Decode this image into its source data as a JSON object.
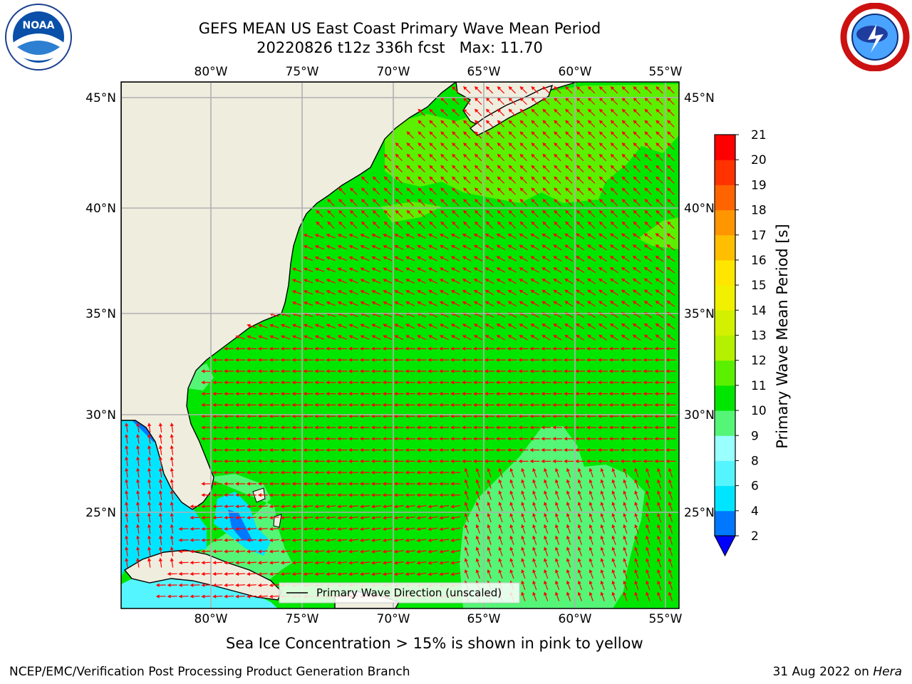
{
  "header": {
    "title_line1": "GEFS MEAN US East Coast Primary Wave Mean Period",
    "title_line2": "20220826 t12z 336h fcst   Max: 11.70"
  },
  "logos": {
    "left": {
      "icon": "noaa-logo",
      "text": "NOAA"
    },
    "right": {
      "icon": "national-weather-service-logo"
    }
  },
  "map": {
    "lon_ticks": [
      "80°W",
      "75°W",
      "70°W",
      "65°W",
      "60°W",
      "55°W"
    ],
    "lat_ticks": [
      "45°N",
      "40°N",
      "35°N",
      "30°N",
      "25°N"
    ],
    "legend_label": "Primary Wave Direction (unscaled)",
    "colors": {
      "land": "#efedde",
      "period_10_11": "#00e600",
      "period_11_12": "#5af000",
      "period_9_10": "#55f577",
      "period_8_9": "#99ffff",
      "period_6_8": "#55f5ff",
      "period_4_6": "#00e5ff",
      "period_2_4": "#0077ff",
      "arrow": "#ff0000",
      "grid": "#b0b0b0"
    }
  },
  "colorbar": {
    "label": "Primary Wave Mean Period [s]",
    "ticks": [
      "2",
      "4",
      "6",
      "8",
      "9",
      "10",
      "11",
      "12",
      "13",
      "14",
      "15",
      "16",
      "17",
      "18",
      "19",
      "20",
      "21"
    ],
    "colors": [
      "#0000ff",
      "#0077ff",
      "#00e5ff",
      "#55f5ff",
      "#99ffff",
      "#55f577",
      "#00e600",
      "#5af000",
      "#b4f000",
      "#d2f000",
      "#f0f000",
      "#ffe600",
      "#ffbe00",
      "#ff9600",
      "#ff6400",
      "#ff3200",
      "#ff0000"
    ]
  },
  "footer": {
    "note": "Sea Ice Concentration > 15% is shown in pink to yellow",
    "credit": "NCEP/EMC/Verification Post Processing Product Generation Branch",
    "date": "31 Aug 2022 on ",
    "machine": "Hera"
  }
}
